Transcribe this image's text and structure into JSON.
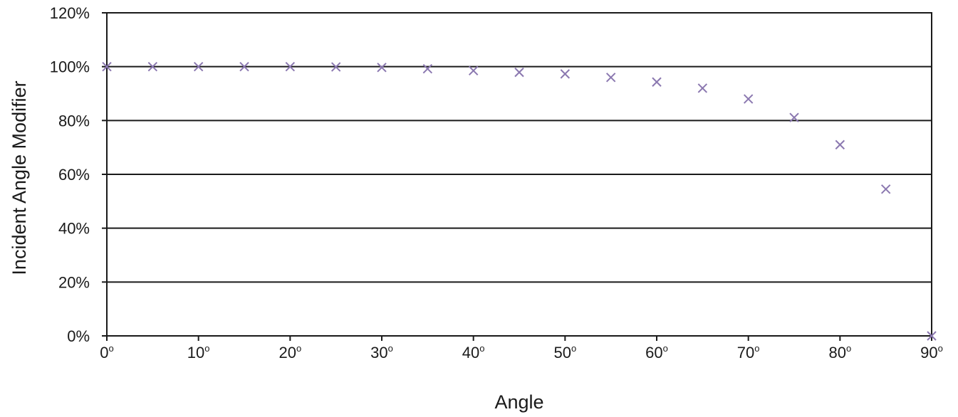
{
  "chart_data": {
    "type": "scatter",
    "title": "",
    "xlabel": "Angle",
    "ylabel": "Incident Angle Modifier",
    "xlim": [
      0,
      90
    ],
    "ylim": [
      0,
      120
    ],
    "x_ticks": [
      0,
      10,
      20,
      30,
      40,
      50,
      60,
      70,
      80,
      90
    ],
    "x_tick_labels": [
      "0",
      "10",
      "20",
      "30",
      "40",
      "50",
      "60",
      "70",
      "80",
      "90"
    ],
    "x_tick_suffix": "o",
    "y_ticks": [
      0,
      20,
      40,
      60,
      80,
      100,
      120
    ],
    "y_tick_labels": [
      "0%",
      "20%",
      "40%",
      "60%",
      "80%",
      "100%",
      "120%"
    ],
    "grid": "horizontal",
    "marker": "x",
    "series": [
      {
        "color": "#8b78b0",
        "x": [
          0,
          5,
          10,
          15,
          20,
          25,
          30,
          35,
          40,
          45,
          50,
          55,
          60,
          65,
          70,
          75,
          80,
          85,
          90
        ],
        "y": [
          100,
          100,
          100,
          100,
          100,
          99.9,
          99.7,
          99.2,
          98.5,
          97.9,
          97.3,
          96,
          94.3,
          92,
          88,
          81.1,
          71,
          54.5,
          0
        ]
      }
    ]
  }
}
